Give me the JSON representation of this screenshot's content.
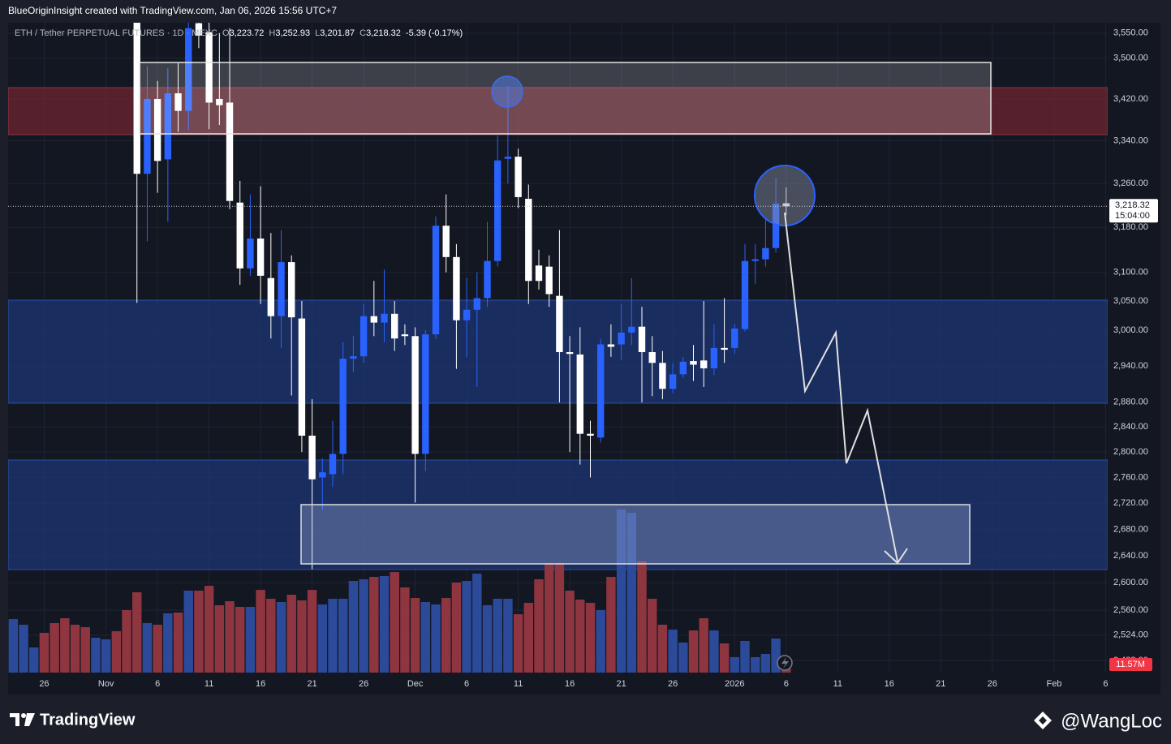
{
  "attribution": "BlueOriginInsight created with TradingView.com, Jan 06, 2026 15:56 UTC+7",
  "chart_data": {
    "type": "candlestick",
    "symbol": "ETH / Tether PERPETUAL FUTURES · 1D · MEXC",
    "ohlc_legend": [
      {
        "key": "O",
        "value": "3,223.72"
      },
      {
        "key": "H",
        "value": "3,252.93"
      },
      {
        "key": "L",
        "value": "3,201.87"
      },
      {
        "key": "C",
        "value": "3,218.32"
      }
    ],
    "change": "-5.39 (-0.17%)",
    "x": [
      0,
      1,
      2,
      3,
      4,
      5,
      6,
      7,
      8,
      9,
      10,
      11,
      12,
      13,
      14,
      15,
      16,
      17,
      18,
      19,
      20,
      21,
      22,
      23,
      24,
      25,
      26,
      27,
      28,
      29,
      30,
      31,
      32,
      33,
      34,
      35,
      36,
      37,
      38,
      39,
      40,
      41,
      42,
      43,
      44,
      45,
      46,
      47,
      48,
      49,
      50,
      51,
      52,
      53,
      54,
      55,
      56,
      57,
      58,
      59,
      60,
      61,
      62,
      63,
      64,
      65,
      66,
      67,
      68,
      69,
      70,
      71,
      72,
      73,
      74,
      75
    ],
    "open": [
      null,
      null,
      null,
      null,
      null,
      null,
      null,
      null,
      null,
      null,
      null,
      null,
      3590,
      3278,
      3420,
      3305,
      3431,
      3397,
      3570,
      3552,
      3420,
      3413,
      3225,
      3107,
      3160,
      3090,
      3024,
      3118,
      3020,
      2826,
      2760,
      2765,
      2797,
      2952,
      2956,
      3024,
      3013,
      3028,
      2993,
      2990,
      2797,
      2993,
      3183,
      3127,
      3017,
      3035,
      3055,
      3120,
      3306,
      3310,
      3232,
      3112,
      3110,
      3059,
      2963,
      2959,
      2829,
      2823,
      2976,
      2976,
      2996,
      3006,
      2963,
      2945,
      2902,
      2926,
      2948,
      2949,
      2936,
      2970,
      2970,
      3002,
      3120,
      3123,
      3143,
      3223.72
    ],
    "high": [
      null,
      null,
      null,
      null,
      null,
      null,
      null,
      null,
      null,
      null,
      null,
      null,
      3640,
      3484,
      3455,
      3480,
      3490,
      3600,
      3600,
      3590,
      3550,
      3560,
      3265,
      3240,
      3255,
      3170,
      3175,
      3130,
      3050,
      2885,
      2790,
      2850,
      2980,
      2990,
      3045,
      3085,
      3105,
      3050,
      3010,
      3005,
      3000,
      3200,
      3240,
      3150,
      3090,
      3100,
      3190,
      3350,
      3445,
      3325,
      3258,
      3140,
      3130,
      3175,
      2990,
      3005,
      2850,
      2985,
      3010,
      3045,
      3090,
      3040,
      2990,
      2965,
      2945,
      2955,
      2975,
      3050,
      3010,
      3055,
      3010,
      3150,
      3150,
      3195,
      3270,
      3252.93
    ],
    "low": [
      null,
      null,
      null,
      null,
      null,
      null,
      null,
      null,
      null,
      null,
      null,
      null,
      3047,
      3155,
      3243,
      3190,
      3357,
      3360,
      3520,
      3362,
      3370,
      3213,
      3078,
      3094,
      3045,
      2986,
      2970,
      2891,
      2800,
      2620,
      2710,
      2745,
      2765,
      2930,
      2945,
      2990,
      2980,
      2965,
      2975,
      2721,
      2770,
      2985,
      3100,
      2935,
      2955,
      2905,
      3040,
      3110,
      3260,
      3215,
      3045,
      3070,
      3040,
      2880,
      2800,
      2780,
      2760,
      2815,
      2955,
      2950,
      2975,
      2880,
      2890,
      2885,
      2895,
      2920,
      2915,
      2905,
      2925,
      2945,
      2960,
      2998,
      3080,
      3110,
      3135,
      3201.87
    ],
    "close": [
      null,
      null,
      null,
      null,
      null,
      null,
      null,
      null,
      null,
      null,
      null,
      null,
      3278,
      3420,
      3302,
      3431,
      3397,
      3560,
      3545,
      3413,
      3408,
      3228,
      3107,
      3160,
      3094,
      3024,
      3118,
      3022,
      2826,
      2757,
      2768,
      2797,
      2952,
      2956,
      3024,
      3013,
      3028,
      2986,
      2990,
      2797,
      2993,
      3183,
      3127,
      3017,
      3035,
      3055,
      3120,
      3303,
      3310,
      3235,
      3085,
      3085,
      3062,
      2963,
      2960,
      2829,
      2826,
      2976,
      2972,
      2996,
      3006,
      2963,
      2945,
      2902,
      2926,
      2947,
      2942,
      2936,
      2970,
      2967,
      3003,
      3120,
      3123,
      3143,
      3223,
      3218.32
    ],
    "volume": [
      75.9,
      67.9,
      35.7,
      56.4,
      70.2,
      77.1,
      67.9,
      64.4,
      49.5,
      47.2,
      58.7,
      88.6,
      113.9,
      70.2,
      67.9,
      84,
      85.1,
      116.2,
      116.2,
      123.1,
      95.5,
      101.2,
      93.2,
      93.2,
      117.3,
      104.7,
      100.1,
      110.4,
      102.4,
      117.3,
      96.6,
      104.7,
      104.7,
      130,
      132.3,
      135.7,
      136.9,
      142.6,
      120.8,
      105.8,
      100.1,
      96.6,
      105.8,
      127.7,
      130,
      140.3,
      95.5,
      104.7,
      104.7,
      82.8,
      98.9,
      132.3,
      155.3,
      155.3,
      116.2,
      103.5,
      98.9,
      88.6,
      135.7,
      231.2,
      226.6,
      157.6,
      104.7,
      67.9,
      61,
      42.6,
      59.8,
      77.1,
      59.8,
      41.4,
      21.9,
      44.9,
      21.9,
      26.5,
      48.3,
      11.57
    ],
    "volume_direction": [
      "up",
      "up",
      "up",
      "down",
      "down",
      "down",
      "down",
      "down",
      "up",
      "up",
      "down",
      "down",
      "down",
      "up",
      "down",
      "up",
      "down",
      "up",
      "down",
      "down",
      "down",
      "down",
      "down",
      "up",
      "down",
      "down",
      "up",
      "down",
      "down",
      "down",
      "up",
      "up",
      "up",
      "up",
      "up",
      "down",
      "up",
      "down",
      "down",
      "down",
      "up",
      "up",
      "down",
      "down",
      "up",
      "up",
      "up",
      "up",
      "up",
      "down",
      "down",
      "down",
      "down",
      "down",
      "down",
      "down",
      "down",
      "up",
      "down",
      "up",
      "up",
      "down",
      "down",
      "down",
      "up",
      "up",
      "down",
      "down",
      "up",
      "down",
      "up",
      "up",
      "up",
      "up",
      "up",
      "down"
    ],
    "volume_last_label": "11.57M",
    "volume_ylim": [
      0,
      260
    ],
    "up_color": "#2962ff",
    "down_color": "#ffffff",
    "volume_up_color": "#2c4a9a",
    "volume_down_color": "#8e3540",
    "last_price_label": "3,218.32",
    "countdown": "15:04:00",
    "log_scale": true,
    "grid": true,
    "ylim": [
      2471,
      3571
    ],
    "yticks": [
      {
        "value": 3550,
        "label": "3,550.00"
      },
      {
        "value": 3500,
        "label": "3,500.00"
      },
      {
        "value": 3420,
        "label": "3,420.00"
      },
      {
        "value": 3340,
        "label": "3,340.00"
      },
      {
        "value": 3260,
        "label": "3,260.00"
      },
      {
        "value": 3180,
        "label": "3,180.00"
      },
      {
        "value": 3100,
        "label": "3,100.00"
      },
      {
        "value": 3050,
        "label": "3,050.00"
      },
      {
        "value": 3000,
        "label": "3,000.00"
      },
      {
        "value": 2940,
        "label": "2,940.00"
      },
      {
        "value": 2880,
        "label": "2,880.00"
      },
      {
        "value": 2840,
        "label": "2,840.00"
      },
      {
        "value": 2800,
        "label": "2,800.00"
      },
      {
        "value": 2760,
        "label": "2,760.00"
      },
      {
        "value": 2720,
        "label": "2,720.00"
      },
      {
        "value": 2680,
        "label": "2,680.00"
      },
      {
        "value": 2640,
        "label": "2,640.00"
      },
      {
        "value": 2600,
        "label": "2,600.00"
      },
      {
        "value": 2560,
        "label": "2,560.00"
      },
      {
        "value": 2524,
        "label": "2,524.00"
      },
      {
        "value": 2488,
        "label": "2,488.00"
      }
    ],
    "xlim": [
      -0.5,
      106.2
    ],
    "xticks": [
      {
        "value": 3,
        "label": "26"
      },
      {
        "value": 9,
        "label": "Nov"
      },
      {
        "value": 14,
        "label": "6"
      },
      {
        "value": 19,
        "label": "11"
      },
      {
        "value": 24,
        "label": "16"
      },
      {
        "value": 29,
        "label": "21"
      },
      {
        "value": 34,
        "label": "26"
      },
      {
        "value": 39,
        "label": "Dec"
      },
      {
        "value": 44,
        "label": "6"
      },
      {
        "value": 49,
        "label": "11"
      },
      {
        "value": 54,
        "label": "16"
      },
      {
        "value": 59,
        "label": "21"
      },
      {
        "value": 64,
        "label": "26"
      },
      {
        "value": 70,
        "label": "2026"
      },
      {
        "value": 75,
        "label": "6"
      },
      {
        "value": 80,
        "label": "11"
      },
      {
        "value": 85,
        "label": "16"
      },
      {
        "value": 90,
        "label": "21"
      },
      {
        "value": 95,
        "label": "26"
      },
      {
        "value": 101,
        "label": "Feb"
      },
      {
        "value": 106,
        "label": "6"
      }
    ]
  },
  "footer": {
    "brand": "TradingView",
    "author": "@WangLoc"
  }
}
